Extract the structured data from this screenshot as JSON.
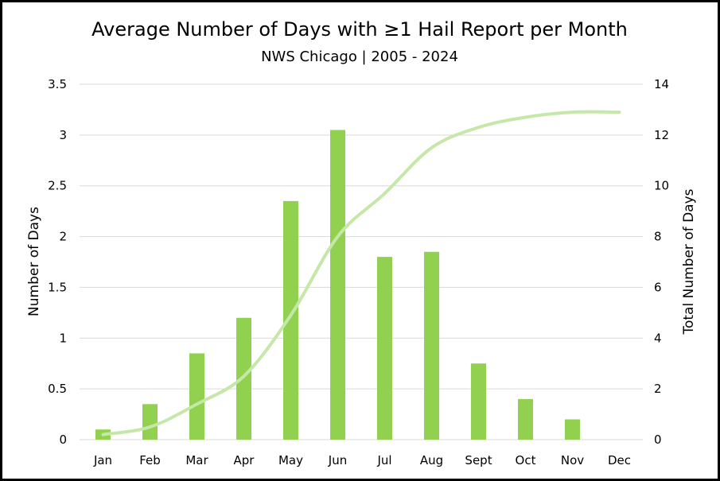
{
  "chart_data": {
    "type": "bar",
    "title": "Average Number of Days with ≥1 Hail Report per Month",
    "subtitle": "NWS Chicago | 2005 - 2024",
    "categories": [
      "Jan",
      "Feb",
      "Mar",
      "Apr",
      "May",
      "Jun",
      "Jul",
      "Aug",
      "Sept",
      "Oct",
      "Nov",
      "Dec"
    ],
    "series": [
      {
        "type": "bar",
        "axis": "left",
        "color": "#92D050",
        "values": [
          0.1,
          0.35,
          0.85,
          1.2,
          2.35,
          3.05,
          1.8,
          1.85,
          0.75,
          0.4,
          0.2,
          0
        ]
      },
      {
        "type": "line",
        "axis": "right",
        "color": "#C5E8A8",
        "values": [
          0.2,
          0.5,
          1.4,
          2.5,
          4.9,
          8.0,
          9.7,
          11.5,
          12.3,
          12.7,
          12.9,
          12.9
        ]
      }
    ],
    "ylabel": "Number of Days",
    "y2label": "Total Number of Days",
    "ylim": [
      0,
      3.5
    ],
    "y2lim": [
      0,
      14
    ],
    "yticks": [
      "0",
      "0.5",
      "1",
      "1.5",
      "2",
      "2.5",
      "3",
      "3.5"
    ],
    "y2ticks": [
      "0",
      "2",
      "4",
      "6",
      "8",
      "10",
      "12",
      "14"
    ],
    "grid": true,
    "legend": "none"
  }
}
